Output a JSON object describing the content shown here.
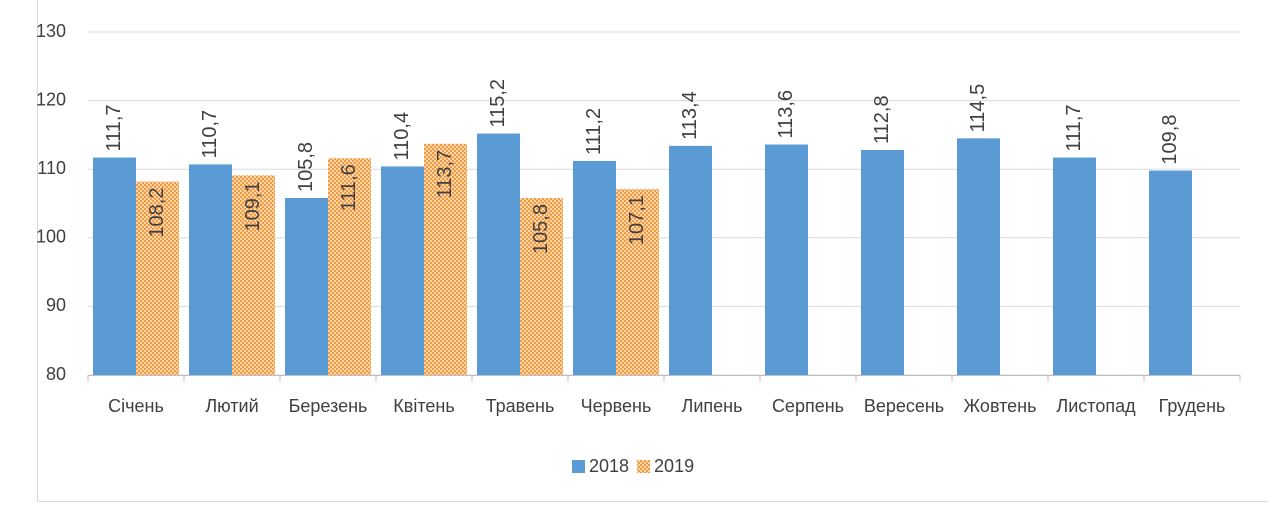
{
  "chart_data": {
    "type": "bar",
    "categories": [
      "Січень",
      "Лютий",
      "Березень",
      "Квітень",
      "Травень",
      "Червень",
      "Липень",
      "Серпень",
      "Вересень",
      "Жовтень",
      "Листопад",
      "Грудень"
    ],
    "series": [
      {
        "name": "2018",
        "color": "#5b9bd5",
        "values": [
          111.7,
          110.7,
          105.8,
          110.4,
          115.2,
          111.2,
          113.4,
          113.6,
          112.8,
          114.5,
          111.7,
          109.8
        ],
        "value_labels": [
          "111,7",
          "110,7",
          "105,8",
          "110,4",
          "115,2",
          "111,2",
          "113,4",
          "113,6",
          "112,8",
          "114,5",
          "111,7",
          "109,8"
        ]
      },
      {
        "name": "2019",
        "color": "#f4a460",
        "values": [
          108.2,
          109.1,
          111.6,
          113.7,
          105.8,
          107.1,
          null,
          null,
          null,
          null,
          null,
          null
        ],
        "value_labels": [
          "108,2",
          "109,1",
          "111,6",
          "113,7",
          "105,8",
          "107,1",
          null,
          null,
          null,
          null,
          null,
          null
        ]
      }
    ],
    "ylim": [
      80,
      130
    ],
    "yticks": [
      80,
      90,
      100,
      110,
      120,
      130
    ],
    "grid": true,
    "legend": "bottom"
  }
}
